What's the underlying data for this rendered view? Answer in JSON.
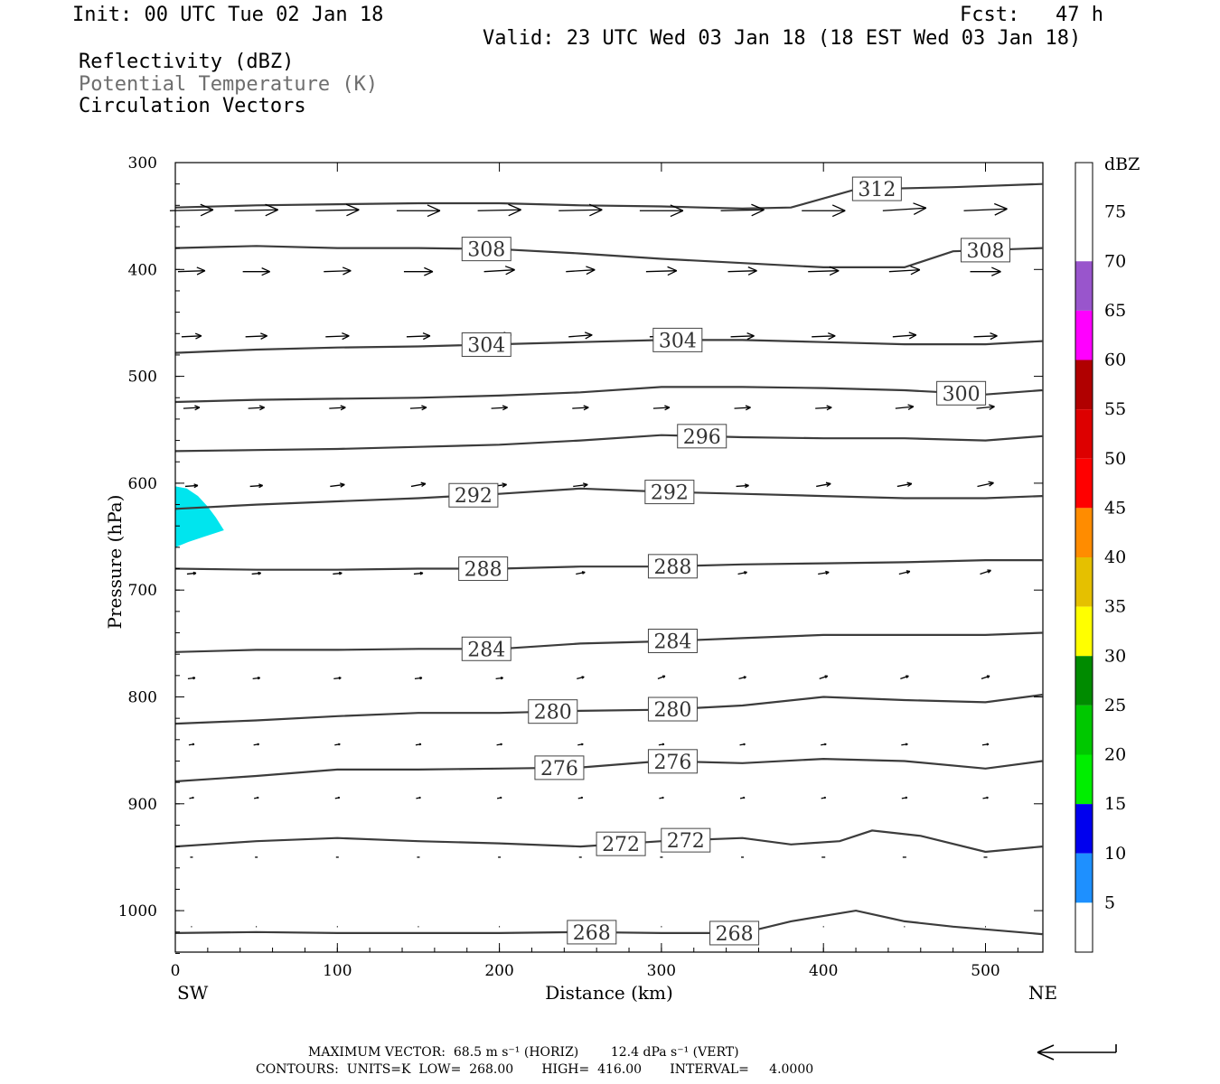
{
  "header": {
    "init": "Init: 00 UTC Tue 02 Jan 18",
    "fcst": "Fcst:   47 h",
    "valid": "Valid: 23 UTC Wed 03 Jan 18 (18 EST Wed 03 Jan 18)",
    "field1": "Reflectivity (dBZ)",
    "field2": "Potential Temperature (K)",
    "field3": "Circulation Vectors"
  },
  "footer": {
    "line1": "MAXIMUM VECTOR:  68.5 m s⁻¹ (HORIZ)        12.4 dPa s⁻¹ (VERT)",
    "line2": "CONTOURS:  UNITS=K  LOW=  268.00       HIGH=  416.00       INTERVAL=     4.0000"
  },
  "colors": {
    "frame": "#000000",
    "contour": "#3c3c3c",
    "reflectivity_fill": "#00e5ee"
  },
  "chart_data": {
    "type": "cross-section",
    "xlabel": "Distance (km)",
    "ylabel": "Pressure (hPa)",
    "xlim": [
      0,
      535
    ],
    "ylim": [
      1040,
      300
    ],
    "x_ticks": [
      0,
      100,
      200,
      300,
      400,
      500
    ],
    "y_ticks": [
      300,
      400,
      500,
      600,
      700,
      800,
      900,
      1000
    ],
    "x_end_labels": {
      "left": "SW",
      "right": "NE"
    },
    "colorbar": {
      "unit": "dBZ",
      "levels": [
        5,
        10,
        15,
        20,
        25,
        30,
        35,
        40,
        45,
        50,
        55,
        60,
        65,
        70,
        75
      ],
      "colors": [
        "#00e5ee",
        "#1e90ff",
        "#0000ee",
        "#00ee00",
        "#00c800",
        "#008b00",
        "#ffff00",
        "#e5c000",
        "#ff8c00",
        "#ff0000",
        "#dd0000",
        "#b00000",
        "#ff00ff",
        "#9955cc",
        "#ffffff"
      ]
    },
    "theta_contours": [
      {
        "level": 268,
        "x": [
          0,
          50,
          100,
          150,
          200,
          250,
          300,
          350,
          380,
          420,
          450,
          480,
          535
        ],
        "p": [
          1021,
          1020,
          1021,
          1021,
          1021,
          1020,
          1021,
          1021,
          1010,
          1000,
          1010,
          1015,
          1022
        ],
        "labels_x": [
          257,
          345
        ]
      },
      {
        "level": 272,
        "x": [
          0,
          50,
          100,
          150,
          200,
          250,
          300,
          350,
          380,
          410,
          430,
          460,
          500,
          535
        ],
        "p": [
          940,
          935,
          932,
          935,
          937,
          940,
          935,
          932,
          938,
          935,
          925,
          930,
          945,
          940
        ],
        "labels_x": [
          275,
          315
        ]
      },
      {
        "level": 276,
        "x": [
          0,
          50,
          100,
          150,
          200,
          250,
          300,
          350,
          400,
          450,
          500,
          535
        ],
        "p": [
          879,
          874,
          868,
          868,
          867,
          866,
          860,
          862,
          858,
          860,
          867,
          860
        ],
        "labels_x": [
          237,
          307
        ]
      },
      {
        "level": 280,
        "x": [
          0,
          50,
          100,
          150,
          200,
          250,
          300,
          350,
          400,
          450,
          500,
          535
        ],
        "p": [
          825,
          822,
          818,
          815,
          815,
          813,
          812,
          808,
          800,
          803,
          805,
          798
        ],
        "labels_x": [
          233,
          307
        ]
      },
      {
        "level": 284,
        "x": [
          0,
          50,
          100,
          150,
          200,
          250,
          300,
          350,
          400,
          450,
          500,
          535
        ],
        "p": [
          758,
          756,
          756,
          755,
          755,
          750,
          748,
          745,
          742,
          742,
          742,
          740
        ],
        "labels_x": [
          192,
          307
        ]
      },
      {
        "level": 288,
        "x": [
          0,
          50,
          100,
          150,
          200,
          250,
          300,
          350,
          400,
          450,
          500,
          535
        ],
        "p": [
          680,
          681,
          681,
          680,
          680,
          678,
          678,
          676,
          675,
          674,
          672,
          672
        ],
        "labels_x": [
          190,
          307
        ]
      },
      {
        "level": 292,
        "x": [
          0,
          50,
          100,
          150,
          200,
          250,
          300,
          350,
          400,
          450,
          500,
          535
        ],
        "p": [
          624,
          620,
          617,
          614,
          610,
          605,
          608,
          610,
          612,
          614,
          614,
          612
        ],
        "labels_x": [
          184,
          305
        ]
      },
      {
        "level": 296,
        "x": [
          0,
          50,
          100,
          150,
          200,
          250,
          300,
          350,
          400,
          450,
          500,
          535
        ],
        "p": [
          570,
          569,
          568,
          566,
          564,
          560,
          555,
          557,
          558,
          558,
          560,
          556
        ],
        "labels_x": [
          325
        ]
      },
      {
        "level": 300,
        "x": [
          0,
          50,
          100,
          150,
          200,
          250,
          300,
          350,
          400,
          450,
          500,
          535
        ],
        "p": [
          524,
          522,
          521,
          520,
          518,
          515,
          510,
          510,
          511,
          513,
          517,
          513
        ],
        "labels_x": [
          485
        ]
      },
      {
        "level": 304,
        "x": [
          0,
          50,
          100,
          150,
          200,
          250,
          300,
          350,
          400,
          450,
          500,
          535
        ],
        "p": [
          478,
          475,
          473,
          472,
          470,
          468,
          466,
          466,
          468,
          470,
          470,
          467
        ],
        "labels_x": [
          192,
          310
        ]
      },
      {
        "level": 308,
        "x": [
          0,
          50,
          100,
          150,
          200,
          250,
          300,
          350,
          400,
          450,
          480,
          535
        ],
        "p": [
          380,
          378,
          380,
          380,
          381,
          385,
          390,
          394,
          398,
          398,
          383,
          380
        ],
        "labels_x": [
          192,
          500
        ]
      },
      {
        "level": 312,
        "x": [
          0,
          50,
          100,
          150,
          200,
          250,
          300,
          350,
          380,
          420,
          480,
          535
        ],
        "p": [
          342,
          340,
          339,
          338,
          338,
          340,
          341,
          343,
          342,
          325,
          323,
          320
        ],
        "labels_x": [
          433
        ]
      }
    ],
    "reflectivity_areas": [
      {
        "dbz_min": 5,
        "polygon_x": [
          0,
          7,
          14,
          20,
          25,
          30,
          18,
          8,
          0
        ],
        "polygon_p": [
          603,
          605,
          612,
          622,
          632,
          644,
          650,
          655,
          660
        ]
      }
    ],
    "vector_columns_x": [
      10,
      50,
      100,
      150,
      200,
      250,
      300,
      350,
      400,
      450,
      500
    ],
    "vector_rows": [
      {
        "p": 345,
        "dx": [
          48,
          48,
          48,
          48,
          48,
          48,
          48,
          48,
          48,
          48,
          48
        ],
        "dy": [
          -1,
          -1,
          -1,
          0,
          -1,
          -1,
          0,
          -1,
          0,
          -3,
          -2
        ]
      },
      {
        "p": 402,
        "dx": [
          30,
          30,
          30,
          32,
          34,
          32,
          34,
          32,
          34,
          34,
          34
        ],
        "dy": [
          -1,
          0,
          -1,
          0,
          -2,
          -2,
          -1,
          -1,
          -1,
          -2,
          0
        ]
      },
      {
        "p": 463,
        "dx": [
          22,
          24,
          26,
          26,
          26,
          26,
          26,
          26,
          26,
          26,
          26
        ],
        "dy": [
          -1,
          -1,
          -1,
          -1,
          -2,
          -2,
          -1,
          -1,
          -1,
          -2,
          -1
        ]
      },
      {
        "p": 530,
        "dx": [
          18,
          18,
          18,
          18,
          18,
          18,
          18,
          18,
          18,
          20,
          20
        ],
        "dy": [
          -1,
          -1,
          -1,
          -1,
          -1,
          -1,
          -1,
          -1,
          -1,
          -2,
          -2
        ]
      },
      {
        "p": 603,
        "dx": [
          14,
          14,
          16,
          16,
          16,
          16,
          14,
          14,
          16,
          16,
          18
        ],
        "dy": [
          -1,
          -1,
          -2,
          -3,
          -2,
          -2,
          -3,
          -1,
          -3,
          -3,
          -4
        ]
      },
      {
        "p": 685,
        "dx": [
          10,
          10,
          10,
          10,
          10,
          10,
          12,
          10,
          12,
          12,
          12
        ],
        "dy": [
          -1,
          -1,
          -1,
          -1,
          -1,
          -2,
          -3,
          -2,
          -2,
          -3,
          -4
        ]
      },
      {
        "p": 783,
        "dx": [
          8,
          8,
          8,
          8,
          8,
          8,
          8,
          8,
          9,
          9,
          9
        ],
        "dy": [
          -1,
          -1,
          -1,
          -1,
          -1,
          -2,
          -3,
          -2,
          -3,
          -3,
          -3
        ]
      },
      {
        "p": 845,
        "dx": [
          6,
          6,
          6,
          6,
          6,
          6,
          6,
          6,
          6,
          7,
          7
        ],
        "dy": [
          -1,
          -1,
          -1,
          -1,
          -1,
          -1,
          -1,
          -1,
          -1,
          -1,
          -1
        ]
      },
      {
        "p": 895,
        "dx": [
          5,
          5,
          5,
          5,
          5,
          5,
          5,
          5,
          5,
          6,
          6
        ],
        "dy": [
          -1,
          -1,
          -1,
          -1,
          -1,
          -1,
          -1,
          -1,
          -1,
          -1,
          -1
        ]
      },
      {
        "p": 950,
        "dx": [
          3,
          3,
          3,
          3,
          3,
          3,
          3,
          3,
          4,
          4,
          4
        ],
        "dy": [
          0,
          0,
          0,
          0,
          0,
          0,
          0,
          0,
          0,
          0,
          0
        ]
      },
      {
        "p": 1015,
        "dx": [
          1,
          1,
          1,
          1,
          1,
          1,
          1,
          1,
          1,
          1,
          1
        ],
        "dy": [
          0,
          0,
          0,
          0,
          0,
          0,
          0,
          0,
          0,
          0,
          0
        ]
      }
    ]
  }
}
